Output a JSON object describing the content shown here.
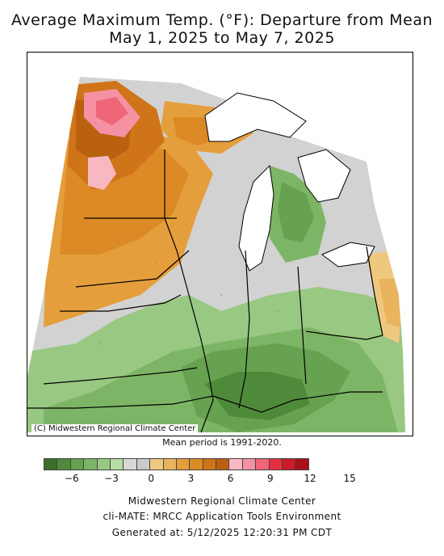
{
  "title_line1": "Average Maximum Temp. (°F): Departure from Mean",
  "title_line2": "May 1, 2025 to May 7, 2025",
  "copyright": "(C) Midwestern Regional Climate Center",
  "mean_period": "Mean period is 1991-2020.",
  "legend": {
    "colors": [
      "#3e6e2c",
      "#4f8a3b",
      "#66a24f",
      "#7db566",
      "#98c882",
      "#b7dca4",
      "#d8d8d8",
      "#c9c9c9",
      "#efc880",
      "#eab35d",
      "#e59e3c",
      "#dc8a26",
      "#cf7418",
      "#b9610f",
      "#f7b8c2",
      "#f492a3",
      "#ee6677",
      "#e6303f",
      "#cc1a26",
      "#a80f1a"
    ],
    "ticks": [
      {
        "label": "−6",
        "pos": 2
      },
      {
        "label": "−3",
        "pos": 5
      },
      {
        "label": "0",
        "pos": 8
      },
      {
        "label": "3",
        "pos": 11
      },
      {
        "label": "6",
        "pos": 14
      },
      {
        "label": "9",
        "pos": 17
      },
      {
        "label": "12",
        "pos": 20
      },
      {
        "label": "15",
        "pos": 23
      }
    ]
  },
  "footer_line1": "Midwestern Regional Climate Center",
  "footer_line2": "cli-MATE: MRCC Application Tools Environment",
  "footer_line3": "Generated at: 5/12/2025 12:20:31 PM CDT"
}
